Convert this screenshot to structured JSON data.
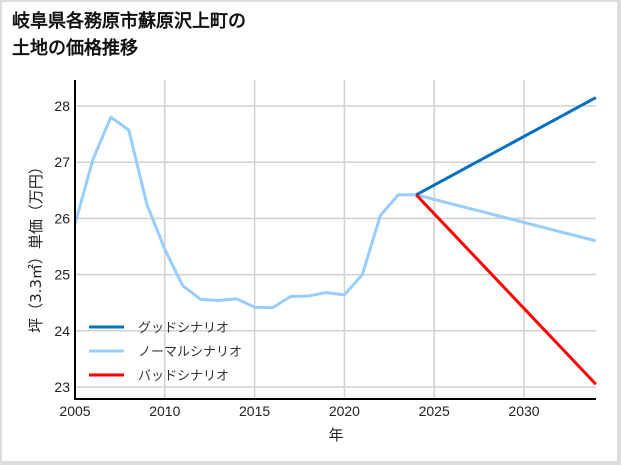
{
  "title": {
    "line1": "岐阜県各務原市蘇原沢上町の",
    "line2": "土地の価格推移"
  },
  "chart_data": {
    "type": "line",
    "title": "岐阜県各務原市蘇原沢上町の土地の価格推移",
    "xlabel": "年",
    "ylabel": "坪（3.3㎡）単価（万円）",
    "xlim": [
      2005,
      2034
    ],
    "ylim": [
      22.8,
      28.4
    ],
    "x_ticks": [
      "2005",
      "2010",
      "2015",
      "2020",
      "2025",
      "2030"
    ],
    "y_ticks": [
      "23",
      "24",
      "25",
      "26",
      "27",
      "28"
    ],
    "grid": true,
    "legend_position": "lower left",
    "series": [
      {
        "name": "ノーマルシナリオ",
        "color": "#99ccff",
        "x": [
          2005,
          2006,
          2007,
          2008,
          2009,
          2010,
          2011,
          2012,
          2013,
          2014,
          2015,
          2016,
          2017,
          2018,
          2019,
          2020,
          2021,
          2022,
          2023,
          2024,
          2034
        ],
        "values": [
          25.9,
          27.05,
          27.8,
          27.57,
          26.25,
          25.45,
          24.8,
          24.56,
          24.54,
          24.57,
          24.42,
          24.41,
          24.61,
          24.62,
          24.68,
          24.64,
          25.0,
          26.05,
          26.42,
          26.42,
          25.6
        ]
      },
      {
        "name": "グッドシナリオ",
        "color": "#0070c0",
        "x": [
          2024,
          2034
        ],
        "values": [
          26.42,
          28.15
        ]
      },
      {
        "name": "バッドシナリオ",
        "color": "#ff0000",
        "x": [
          2024,
          2034
        ],
        "values": [
          26.42,
          23.05
        ]
      }
    ]
  }
}
